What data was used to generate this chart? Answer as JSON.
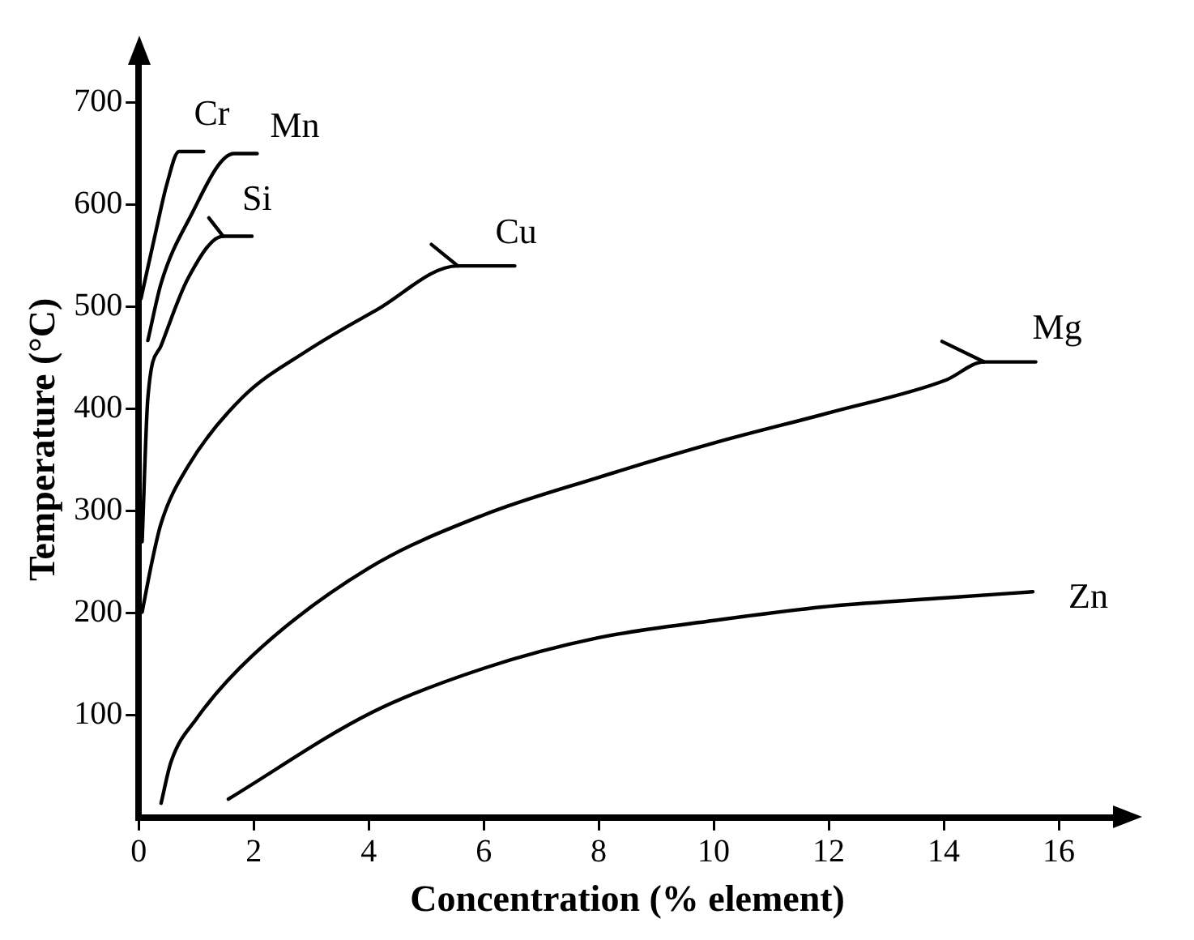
{
  "chart_data": {
    "type": "line",
    "xlabel": "Concentration (% element)",
    "ylabel": "Temperature (°C)",
    "xlim": [
      0,
      17
    ],
    "ylim": [
      0,
      740
    ],
    "xticks": [
      0,
      2,
      4,
      6,
      8,
      10,
      12,
      14,
      16
    ],
    "yticks": [
      100,
      200,
      300,
      400,
      500,
      600,
      700
    ],
    "grid": false,
    "legend": false,
    "marker": "none",
    "line_style": "solid",
    "series": [
      {
        "name": "Cr",
        "color": "#000000",
        "x": [
          0.04,
          0.3,
          0.49,
          0.7,
          1.13
        ],
        "values": [
          508,
          574,
          620,
          652,
          652
        ]
      },
      {
        "name": "Mn",
        "color": "#000000",
        "x": [
          0.16,
          0.39,
          0.86,
          1.66,
          2.06
        ],
        "values": [
          467,
          523,
          584,
          650,
          650
        ]
      },
      {
        "name": "Si",
        "color": "#000000",
        "x": [
          0.06,
          0.16,
          0.39,
          0.86,
          1.47,
          1.97
        ],
        "values": [
          270,
          411,
          462,
          528,
          569,
          569
        ]
      },
      {
        "color": "#000000",
        "x": [
          1.22,
          1.47
        ],
        "values": [
          587,
          569
        ]
      },
      {
        "name": "Cu",
        "color": "#000000",
        "x": [
          0.06,
          0.23,
          0.39,
          0.86,
          1.8,
          2.93,
          4.14,
          5.55,
          6.54
        ],
        "values": [
          201,
          250,
          288,
          344,
          411,
          457,
          497,
          540,
          540
        ]
      },
      {
        "color": "#000000",
        "x": [
          5.09,
          5.55
        ],
        "values": [
          561,
          540
        ]
      },
      {
        "name": "Mg",
        "color": "#000000",
        "x": [
          0.39,
          0.56,
          1.01,
          1.97,
          4.0,
          5.99,
          8.0,
          10.03,
          12.06,
          14.03,
          14.7,
          15.6
        ],
        "values": [
          14,
          54,
          97,
          158,
          244,
          296,
          333,
          367,
          397,
          428,
          446,
          446
        ]
      },
      {
        "color": "#000000",
        "x": [
          13.97,
          14.7
        ],
        "values": [
          466,
          446
        ]
      },
      {
        "name": "Zn",
        "color": "#000000",
        "x": [
          1.56,
          4.06,
          6.0,
          8.0,
          10.03,
          12.06,
          14.03,
          15.55
        ],
        "values": [
          18,
          103,
          146,
          176,
          193,
          207,
          215,
          221
        ]
      }
    ]
  }
}
